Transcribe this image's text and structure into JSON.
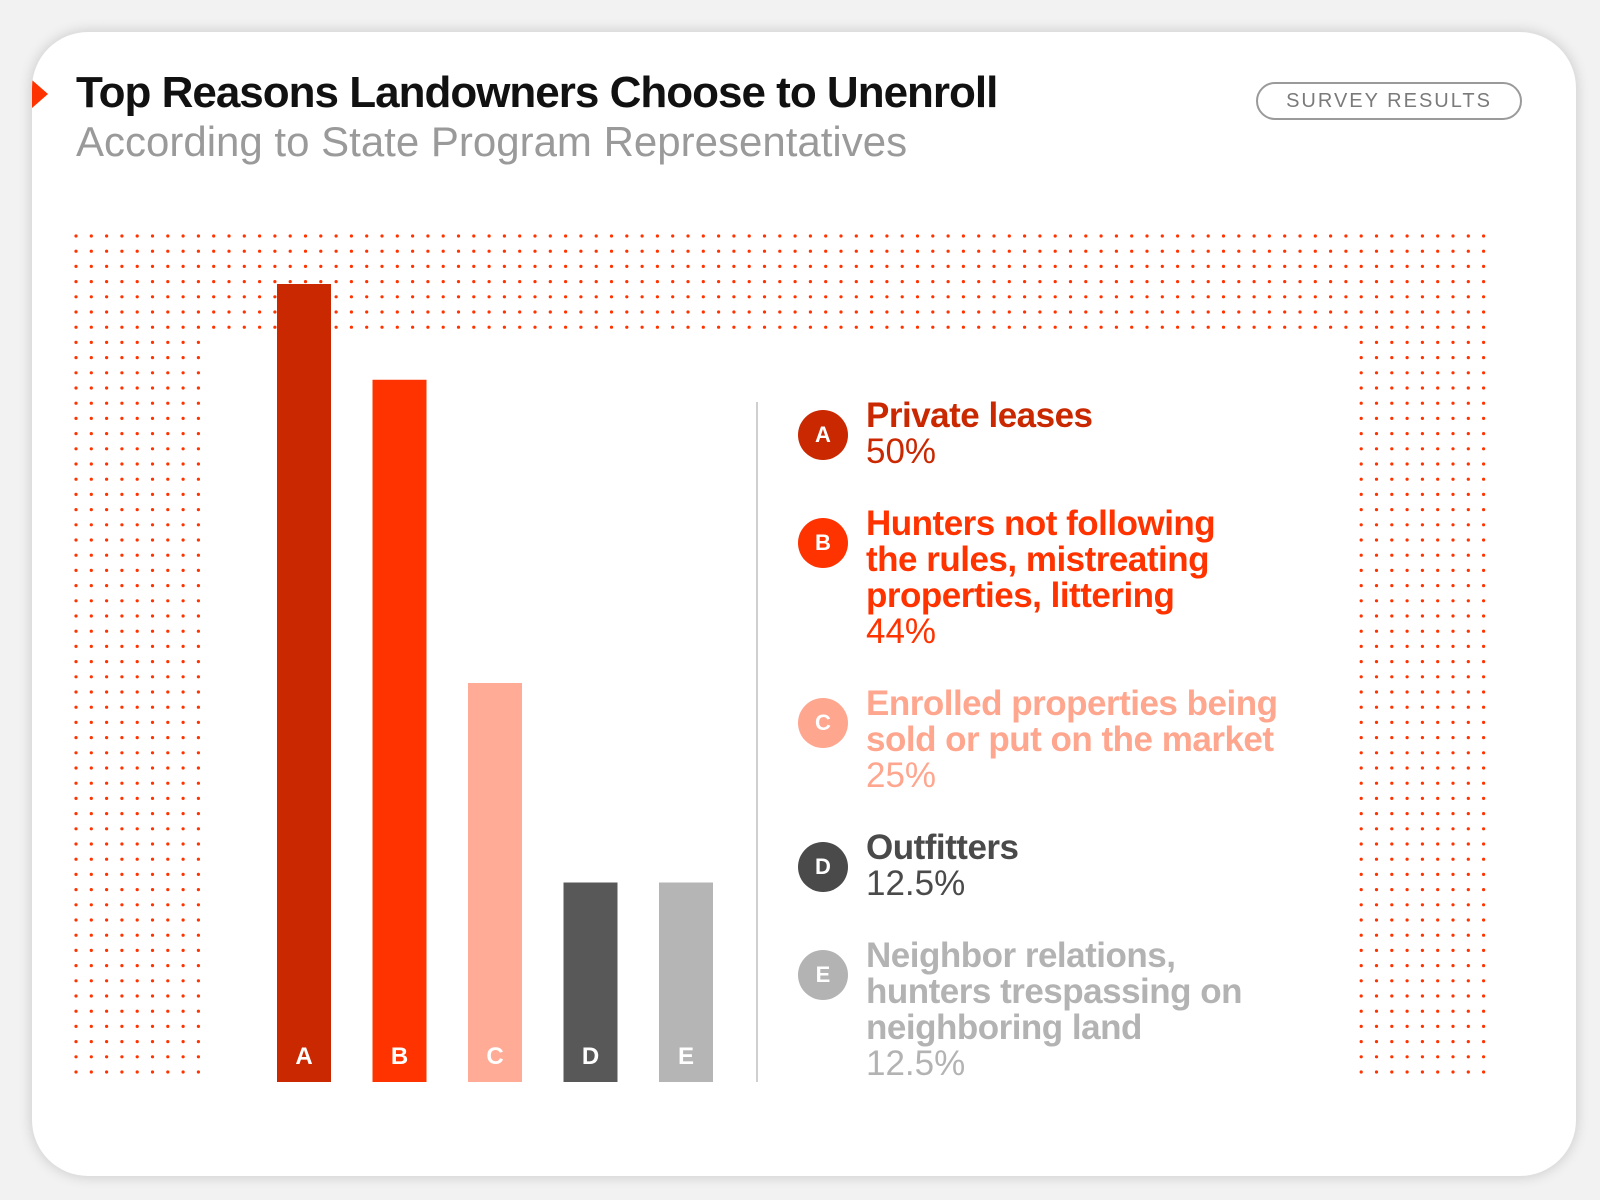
{
  "header": {
    "title": "Top Reasons Landowners Choose to Unenroll",
    "subtitle": "According to State Program Representatives",
    "badge": "SURVEY RESULTS"
  },
  "colors": {
    "accent": "#ff3300",
    "dots": "#ff3300"
  },
  "chart_data": {
    "type": "bar",
    "categories": [
      "A",
      "B",
      "C",
      "D",
      "E"
    ],
    "values": [
      50,
      44,
      25,
      12.5,
      12.5
    ],
    "unit": "%",
    "ylim": [
      0,
      50
    ],
    "grid": false,
    "legend_position": "right",
    "colors": [
      "#c92800",
      "#ff3300",
      "#ffab96",
      "#585858",
      "#b5b5b5"
    ],
    "legend": [
      {
        "letter": "A",
        "label": "Private leases",
        "value": "50%",
        "color": "#c92800"
      },
      {
        "letter": "B",
        "label": "Hunters not following the rules, mistreating properties, littering",
        "value": "44%",
        "color": "#ff3300"
      },
      {
        "letter": "C",
        "label": "Enrolled properties being sold or put on the market",
        "value": "25%",
        "color": "#ffa68f"
      },
      {
        "letter": "D",
        "label": "Outfitters",
        "value": "12.5%",
        "color": "#4a4a4a"
      },
      {
        "letter": "E",
        "label": "Neighbor relations, hunters trespassing on neighboring land",
        "value": "12.5%",
        "color": "#b3b3b3"
      }
    ]
  }
}
